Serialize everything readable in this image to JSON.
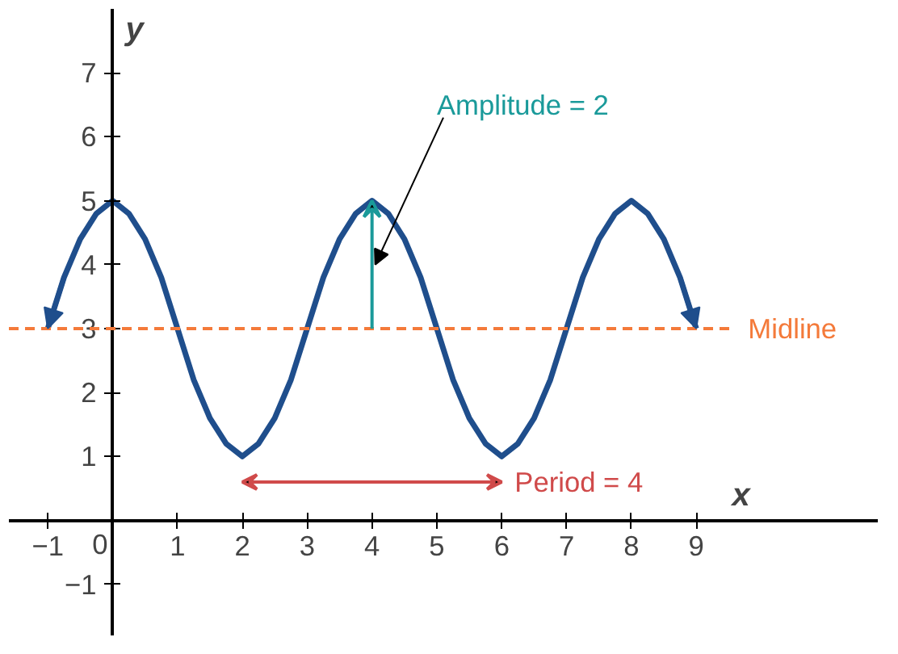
{
  "chart_data": {
    "type": "line",
    "xlabel": "x",
    "ylabel": "y",
    "xlim": [
      -1.6,
      11.8
    ],
    "ylim": [
      -1.8,
      8
    ],
    "xticks": [
      -1,
      0,
      1,
      2,
      3,
      4,
      5,
      6,
      7,
      8,
      9
    ],
    "yticks": [
      -1,
      1,
      2,
      3,
      4,
      5,
      6,
      7
    ],
    "grid": false,
    "series": [
      {
        "color": "#1f4e8c",
        "x": [
          -1,
          -0.75,
          -0.5,
          -0.25,
          0,
          0.25,
          0.5,
          0.75,
          1,
          1.25,
          1.5,
          1.75,
          2,
          2.25,
          2.5,
          2.75,
          3,
          3.25,
          3.5,
          3.75,
          4,
          4.25,
          4.5,
          4.75,
          5,
          5.25,
          5.5,
          5.75,
          6,
          6.25,
          6.5,
          6.75,
          7,
          7.25,
          7.5,
          7.75,
          8,
          8.25,
          8.5,
          8.75,
          9
        ],
        "values": [
          3,
          3.8,
          4.4,
          4.8,
          5,
          4.8,
          4.4,
          3.8,
          3,
          2.2,
          1.6,
          1.2,
          1,
          1.2,
          1.6,
          2.2,
          3,
          3.8,
          4.4,
          4.8,
          5,
          4.8,
          4.4,
          3.8,
          3,
          2.2,
          1.6,
          1.2,
          1,
          1.2,
          1.6,
          2.2,
          3,
          3.8,
          4.4,
          4.8,
          5,
          4.8,
          4.4,
          3.8,
          3
        ]
      }
    ],
    "ref_lines": [
      {
        "axis": "y",
        "value": 3,
        "label": "Midline",
        "color": "#f47a3a",
        "line_style": "dashed"
      }
    ],
    "annotations": [
      "Amplitude = 2",
      "Period = 4"
    ]
  }
}
